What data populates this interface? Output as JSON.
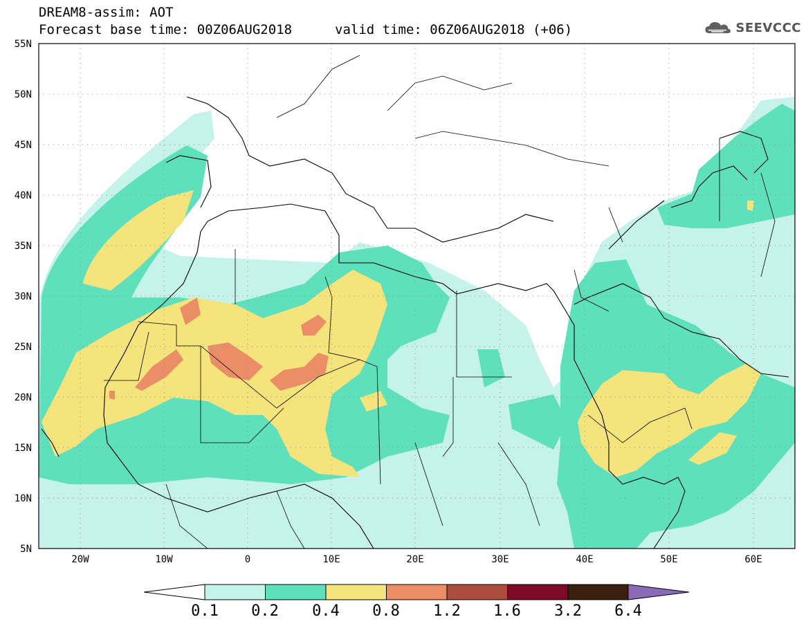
{
  "header": {
    "title_line_1": "DREAM8-assim: AOT",
    "title_line_2": "Forecast base time: 00Z06AUG2018",
    "valid_time": "valid time: 06Z06AUG2018 (+06)",
    "logo_text": "SEEVCCC",
    "logo_icon": "cloud-icon"
  },
  "map": {
    "type": "filled-contour-map",
    "variable": "AOT",
    "lon_range": [
      -25,
      65
    ],
    "lat_range": [
      5,
      55
    ],
    "grid": "dotted",
    "lat_ticks": [
      "55N",
      "50N",
      "45N",
      "40N",
      "35N",
      "30N",
      "25N",
      "20N",
      "15N",
      "10N",
      "5N"
    ],
    "lon_ticks": [
      "20W",
      "10W",
      "0",
      "10E",
      "20E",
      "30E",
      "40E",
      "50E",
      "60E"
    ]
  },
  "colorbar": {
    "levels": [
      "0.1",
      "0.2",
      "0.4",
      "0.8",
      "1.2",
      "1.6",
      "3.2",
      "6.4"
    ],
    "colors": [
      "#c6f2ec",
      "#5ee0bd",
      "#f5e37c",
      "#eb8e67",
      "#ad4e3c",
      "#7d0a27",
      "#3b1f0f",
      "#8b6ab8"
    ]
  }
}
